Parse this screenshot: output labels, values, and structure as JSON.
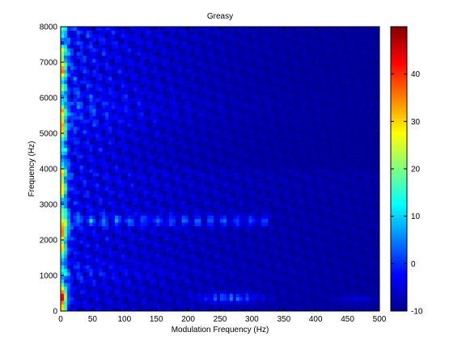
{
  "chart_data": {
    "type": "heatmap",
    "title": "Greasy",
    "xlabel": "Modulation Frequency (Hz)",
    "ylabel": "Frequency (Hz)",
    "xlim": [
      0,
      500
    ],
    "ylim": [
      0,
      8000
    ],
    "xticks": [
      0,
      50,
      100,
      150,
      200,
      250,
      300,
      350,
      400,
      450,
      500
    ],
    "yticks": [
      0,
      1000,
      2000,
      3000,
      4000,
      5000,
      6000,
      7000,
      8000
    ],
    "colorbar": {
      "ticks": [
        -10,
        0,
        10,
        20,
        30,
        40
      ],
      "range": [
        -10,
        50
      ],
      "colormap": "jet"
    },
    "grid": false,
    "features": [
      {
        "note": "intense ridge near 0 Hz modulation across all frequencies",
        "x": [
          0,
          20
        ],
        "y": [
          0,
          8000
        ],
        "level": 30
      },
      {
        "note": "hot spot at low frequency",
        "x": [
          0,
          20
        ],
        "y": [
          100,
          600
        ],
        "level": 48
      },
      {
        "note": "hot band",
        "x": [
          0,
          20
        ],
        "y": [
          2000,
          2900
        ],
        "level": 34
      },
      {
        "note": "band",
        "x": [
          0,
          330
        ],
        "y": [
          2300,
          2800
        ],
        "level": 10
      },
      {
        "note": "band",
        "x": [
          200,
          320
        ],
        "y": [
          200,
          700
        ],
        "level": 14
      },
      {
        "note": "textured region",
        "x": [
          0,
          250
        ],
        "y": [
          4000,
          8000
        ],
        "level": 5
      }
    ]
  }
}
